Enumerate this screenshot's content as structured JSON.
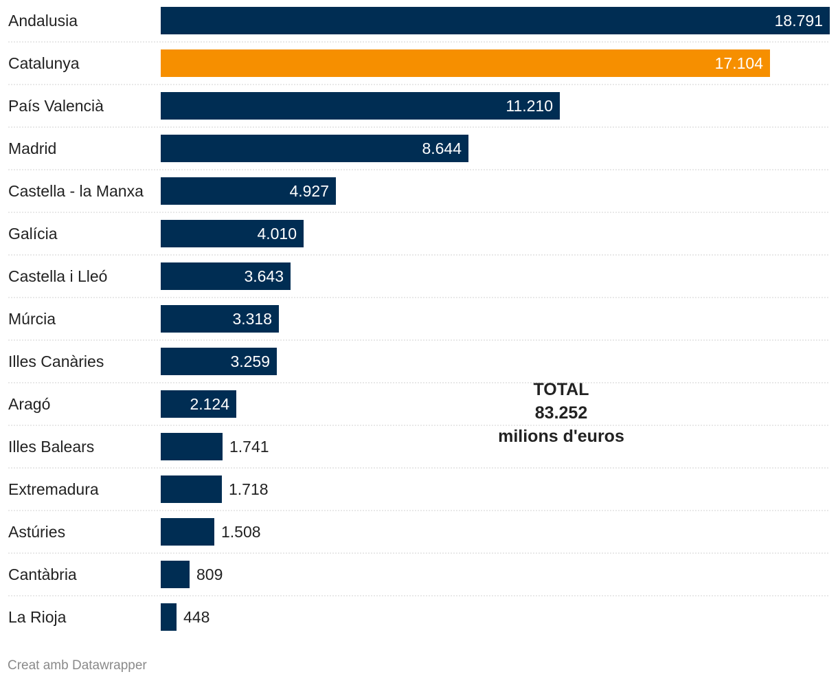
{
  "chart_data": {
    "type": "bar",
    "orientation": "horizontal",
    "title": "",
    "xlabel": "",
    "ylabel": "",
    "xlim": [
      0,
      18791
    ],
    "grid": false,
    "categories": [
      "Andalusia",
      "Catalunya",
      "País Valencià",
      "Madrid",
      "Castella - la Manxa",
      "Galícia",
      "Castella i Lleó",
      "Múrcia",
      "Illes Canàries",
      "Aragó",
      "Illes Balears",
      "Extremadura",
      "Astúries",
      "Cantàbria",
      "La Rioja"
    ],
    "values": [
      18791,
      17104,
      11210,
      8644,
      4927,
      4010,
      3643,
      3318,
      3259,
      2124,
      1741,
      1718,
      1508,
      809,
      448
    ],
    "value_labels": [
      "18.791",
      "17.104",
      "11.210",
      "8.644",
      "4.927",
      "4.010",
      "3.643",
      "3.318",
      "3.259",
      "2.124",
      "1.741",
      "1.718",
      "1.508",
      "809",
      "448"
    ],
    "highlight": "Catalunya",
    "colors": {
      "bar": "#002d53",
      "highlight": "#f68f00",
      "separator": "#d0d0d0",
      "label": "#222222"
    },
    "annotation": {
      "line1": "TOTAL",
      "line2": "83.252",
      "line3": "milions d'euros"
    }
  },
  "footer": {
    "credit": "Creat amb Datawrapper"
  }
}
